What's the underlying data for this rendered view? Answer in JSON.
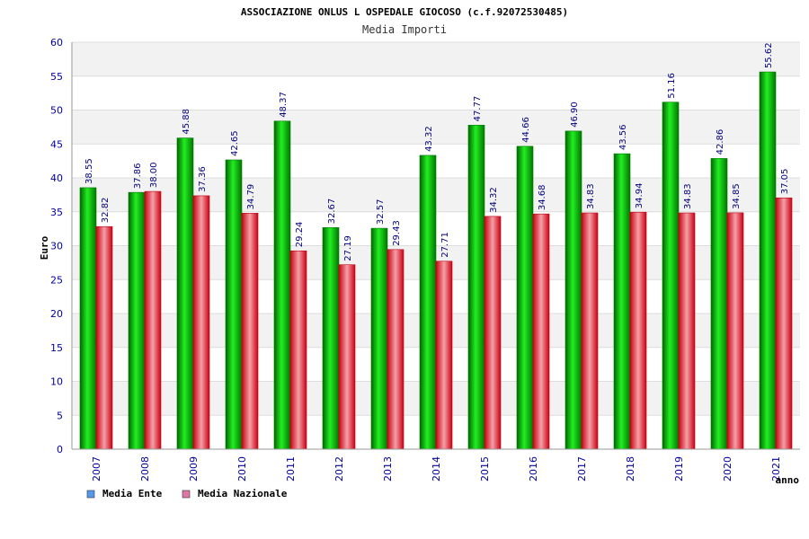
{
  "chart_data": {
    "type": "bar",
    "title": "ASSOCIAZIONE ONLUS L OSPEDALE GIOCOSO (c.f.92072530485)",
    "subtitle": "Media Importi",
    "xlabel": "anno",
    "ylabel": "Euro",
    "ylim": [
      0,
      60
    ],
    "yticks": [
      "0",
      "5",
      "10",
      "15",
      "20",
      "25",
      "30",
      "35",
      "40",
      "45",
      "50",
      "55",
      "60"
    ],
    "categories": [
      "2007",
      "2008",
      "2009",
      "2010",
      "2011",
      "2012",
      "2013",
      "2014",
      "2015",
      "2016",
      "2017",
      "2018",
      "2019",
      "2020",
      "2021"
    ],
    "series": [
      {
        "name": "Media Ente",
        "color": "#00b000",
        "legend_color": "#5599ee",
        "values": [
          38.55,
          37.86,
          45.88,
          42.65,
          48.37,
          32.67,
          32.57,
          43.32,
          47.77,
          44.66,
          46.9,
          43.56,
          51.16,
          42.86,
          55.62
        ],
        "labels": [
          "38.55",
          "37.86",
          "45.88",
          "42.65",
          "48.37",
          "32.67",
          "32.57",
          "43.32",
          "47.77",
          "44.66",
          "46.90",
          "43.56",
          "51.16",
          "42.86",
          "55.62"
        ]
      },
      {
        "name": "Media Nazionale",
        "color": "#e8202a",
        "legend_color": "#dd77aa",
        "values": [
          32.82,
          38.0,
          37.36,
          34.79,
          29.24,
          27.19,
          29.43,
          27.71,
          34.32,
          34.68,
          34.83,
          34.94,
          34.83,
          34.85,
          37.05
        ],
        "labels": [
          "32.82",
          "38.00",
          "37.36",
          "34.79",
          "29.24",
          "27.19",
          "29.43",
          "27.71",
          "34.32",
          "34.68",
          "34.83",
          "34.94",
          "34.83",
          "34.85",
          "37.05"
        ]
      }
    ],
    "grid": true,
    "legend_position": "bottom-left"
  }
}
